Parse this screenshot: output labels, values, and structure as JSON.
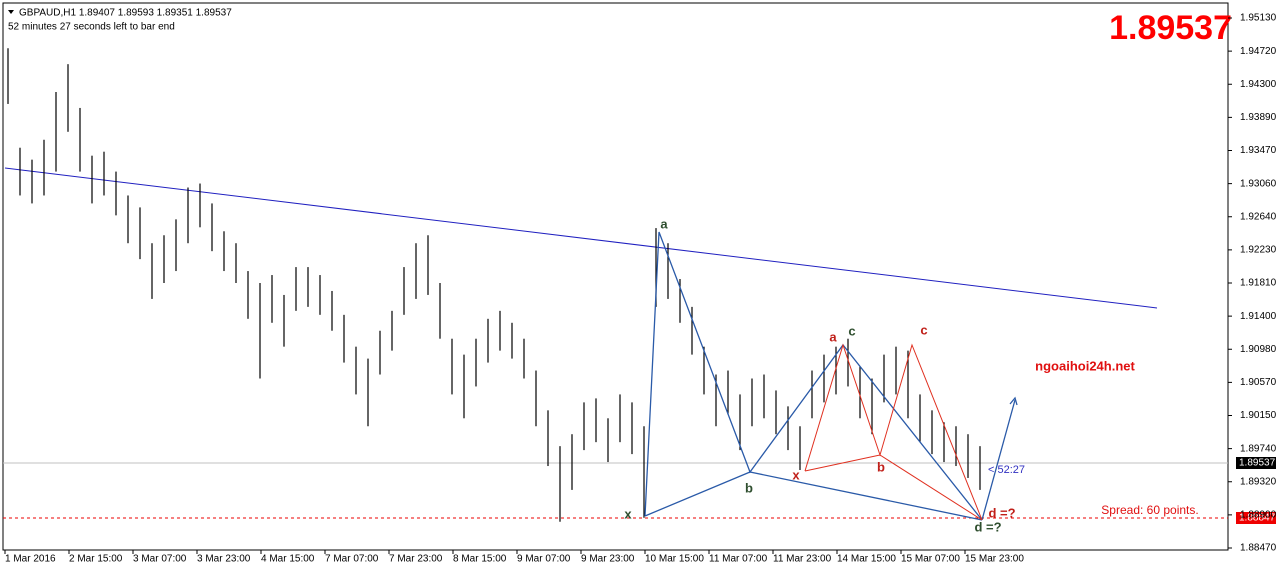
{
  "header": {
    "symbol_line": "GBPAUD,H1  1.89407 1.89593 1.89351 1.89537",
    "timer": "52 minutes 27 seconds left to bar end"
  },
  "big_price": "1.89537",
  "price_axis": [
    "1.95130",
    "1.94720",
    "1.94300",
    "1.93890",
    "1.93470",
    "1.93060",
    "1.92640",
    "1.92230",
    "1.91810",
    "1.91400",
    "1.90980",
    "1.90570",
    "1.90150",
    "1.89740",
    "1.89320",
    "1.88900",
    "1.88470"
  ],
  "price_tags": {
    "bid": "1.89537",
    "spread_level": "1.88847"
  },
  "time_axis": [
    "1 Mar 2016",
    "2 Mar 15:00",
    "3 Mar 07:00",
    "3 Mar 23:00",
    "4 Mar 15:00",
    "7 Mar 07:00",
    "7 Mar 23:00",
    "8 Mar 15:00",
    "9 Mar 07:00",
    "9 Mar 23:00",
    "10 Mar 15:00",
    "11 Mar 07:00",
    "11 Mar 23:00",
    "14 Mar 15:00",
    "15 Mar 07:00",
    "15 Mar 23:00"
  ],
  "annotations": {
    "blue": {
      "x": "x",
      "a": "a",
      "b": "b",
      "c": "c",
      "d": "d =?"
    },
    "red": {
      "x": "x",
      "a": "a",
      "b": "b",
      "c": "c",
      "d": "d =?"
    },
    "site": "ngoaihoi24h.net",
    "spread": "Spread: 60 points.",
    "countdown": "< 52:27"
  },
  "bars": [
    [
      1.9475,
      1.9405
    ],
    [
      1.935,
      1.929
    ],
    [
      1.9335,
      1.928
    ],
    [
      1.936,
      1.929
    ],
    [
      1.942,
      1.932
    ],
    [
      1.9455,
      1.937
    ],
    [
      1.94,
      1.932
    ],
    [
      1.934,
      1.928
    ],
    [
      1.9345,
      1.929
    ],
    [
      1.932,
      1.9265
    ],
    [
      1.929,
      1.923
    ],
    [
      1.9275,
      1.921
    ],
    [
      1.923,
      1.916
    ],
    [
      1.924,
      1.918
    ],
    [
      1.926,
      1.9195
    ],
    [
      1.93,
      1.923
    ],
    [
      1.9305,
      1.925
    ],
    [
      1.928,
      1.922
    ],
    [
      1.9245,
      1.9195
    ],
    [
      1.923,
      1.918
    ],
    [
      1.9195,
      1.9135
    ],
    [
      1.918,
      1.906
    ],
    [
      1.919,
      1.913
    ],
    [
      1.9165,
      1.91
    ],
    [
      1.92,
      1.9145
    ],
    [
      1.92,
      1.915
    ],
    [
      1.919,
      1.914
    ],
    [
      1.917,
      1.912
    ],
    [
      1.914,
      1.908
    ],
    [
      1.91,
      1.904
    ],
    [
      1.9085,
      1.9
    ],
    [
      1.912,
      1.9065
    ],
    [
      1.9145,
      1.9095
    ],
    [
      1.92,
      1.914
    ],
    [
      1.923,
      1.916
    ],
    [
      1.924,
      1.9165
    ],
    [
      1.918,
      1.911
    ],
    [
      1.911,
      1.904
    ],
    [
      1.909,
      1.901
    ],
    [
      1.911,
      1.905
    ],
    [
      1.9135,
      1.908
    ],
    [
      1.9145,
      1.9095
    ],
    [
      1.913,
      1.9085
    ],
    [
      1.911,
      1.906
    ],
    [
      1.907,
      1.9
    ],
    [
      1.902,
      1.895
    ],
    [
      1.8975,
      1.888
    ],
    [
      1.899,
      1.892
    ],
    [
      1.903,
      1.897
    ],
    [
      1.9035,
      1.898
    ],
    [
      1.901,
      1.8955
    ],
    [
      1.904,
      1.898
    ],
    [
      1.903,
      1.8965
    ],
    [
      1.9,
      1.8885
    ],
    [
      1.9249,
      1.915
    ],
    [
      1.923,
      1.916
    ],
    [
      1.9185,
      1.913
    ],
    [
      1.915,
      1.909
    ],
    [
      1.91,
      1.904
    ],
    [
      1.9065,
      1.9
    ],
    [
      1.907,
      1.9015
    ],
    [
      1.904,
      1.897
    ],
    [
      1.906,
      1.9
    ],
    [
      1.9065,
      1.901
    ],
    [
      1.9045,
      1.899
    ],
    [
      1.9025,
      1.897
    ],
    [
      1.9,
      1.8945
    ],
    [
      1.907,
      1.901
    ],
    [
      1.909,
      1.903
    ],
    [
      1.91,
      1.904
    ],
    [
      1.911,
      1.905
    ],
    [
      1.9075,
      1.901
    ],
    [
      1.906,
      1.899
    ],
    [
      1.909,
      1.903
    ],
    [
      1.91,
      1.904
    ],
    [
      1.9095,
      1.901
    ],
    [
      1.904,
      1.898
    ],
    [
      1.902,
      1.8965
    ],
    [
      1.9005,
      1.8955
    ],
    [
      1.9,
      1.895
    ],
    [
      1.899,
      1.8935
    ],
    [
      1.8975,
      1.892
    ]
  ]
}
